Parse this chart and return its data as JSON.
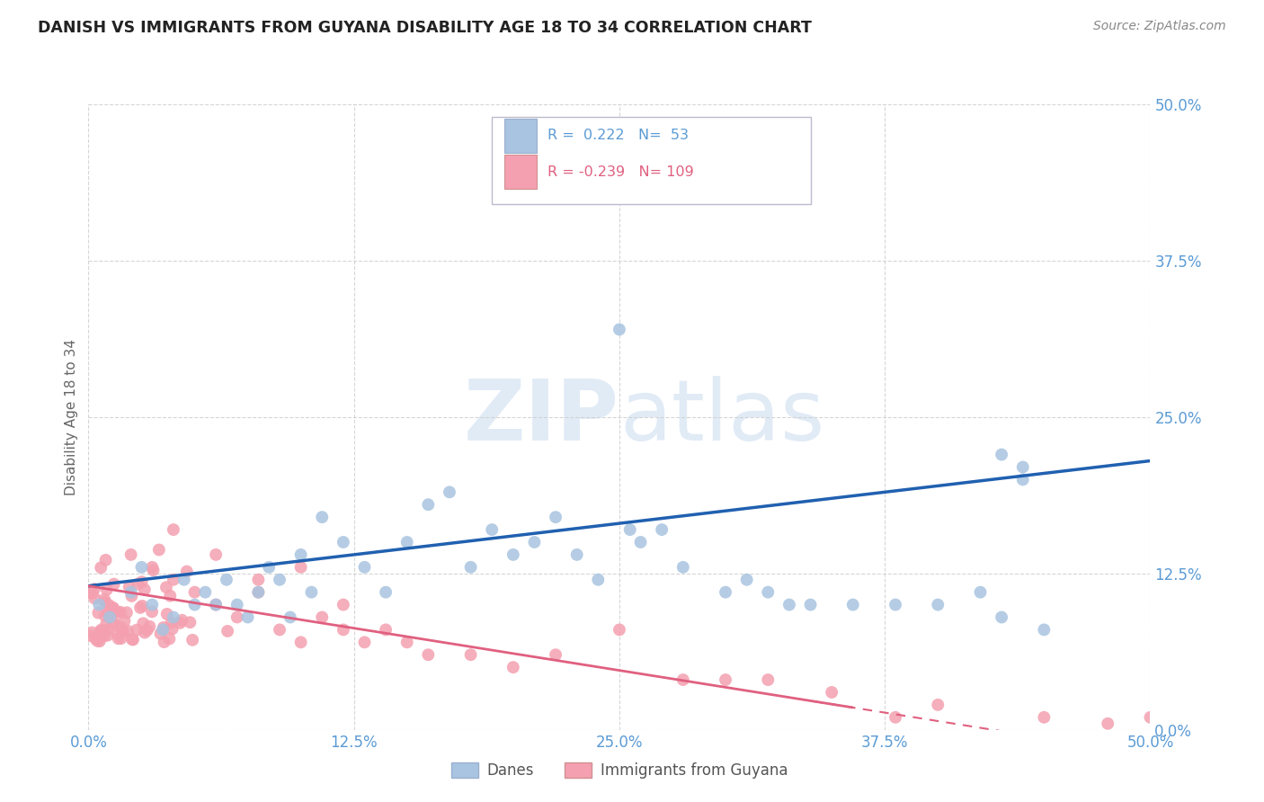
{
  "title": "DANISH VS IMMIGRANTS FROM GUYANA DISABILITY AGE 18 TO 34 CORRELATION CHART",
  "source": "Source: ZipAtlas.com",
  "ylabel": "Disability Age 18 to 34",
  "xlim": [
    0,
    0.5
  ],
  "ylim": [
    0,
    0.5
  ],
  "blue_R": 0.222,
  "blue_N": 53,
  "pink_R": -0.239,
  "pink_N": 109,
  "blue_color": "#a8c4e0",
  "pink_color": "#f4a0b0",
  "blue_line_color": "#2060b0",
  "pink_line_color": "#e06080",
  "legend_blue_label": "Danes",
  "legend_pink_label": "Immigrants from Guyana",
  "watermark_zip": "ZIP",
  "watermark_atlas": "atlas",
  "background_color": "#ffffff",
  "tick_color": "#5b9bd5",
  "title_color": "#222222",
  "source_color": "#888888",
  "legend_text_color": "#555555",
  "grid_color": "#cccccc",
  "ylabel_color": "#666666"
}
